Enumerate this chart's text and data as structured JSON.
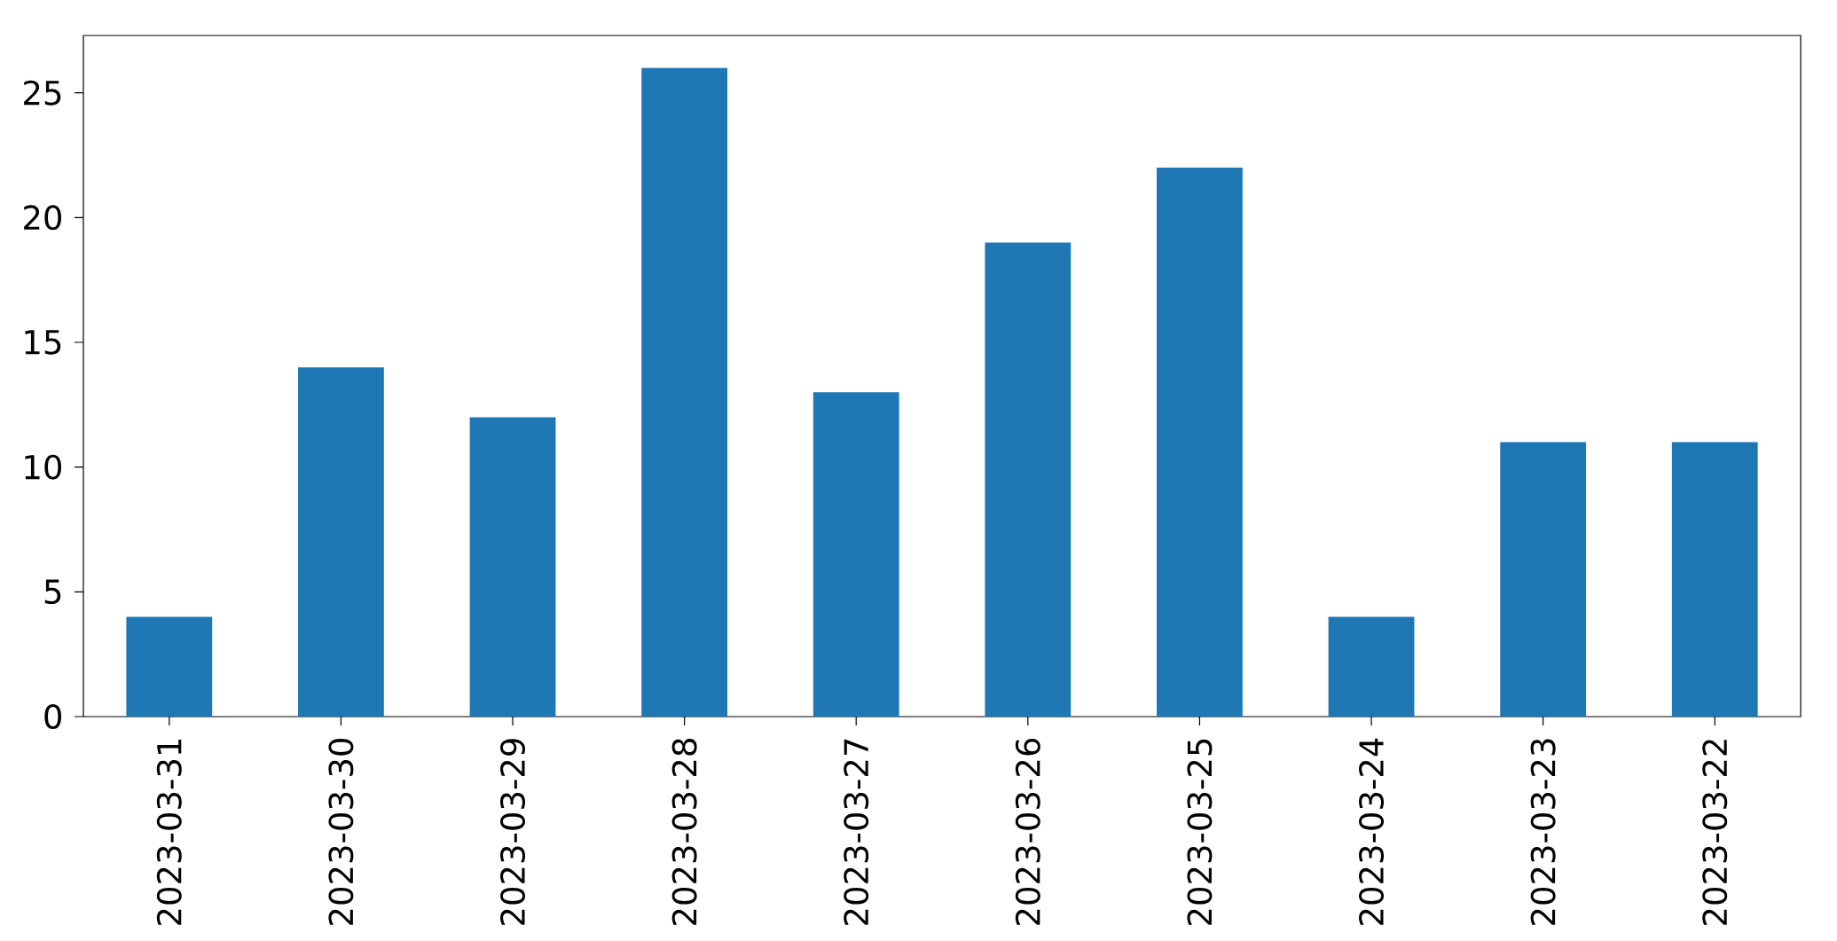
{
  "chart_data": {
    "type": "bar",
    "categories": [
      "2023-03-31",
      "2023-03-30",
      "2023-03-29",
      "2023-03-28",
      "2023-03-27",
      "2023-03-26",
      "2023-03-25",
      "2023-03-24",
      "2023-03-23",
      "2023-03-22"
    ],
    "values": [
      4,
      14,
      12,
      26,
      13,
      19,
      22,
      4,
      11,
      11
    ],
    "color": "#1f77b4",
    "ylim": [
      0,
      27.3
    ],
    "yticks": [
      0,
      5,
      10,
      15,
      20,
      25
    ]
  }
}
